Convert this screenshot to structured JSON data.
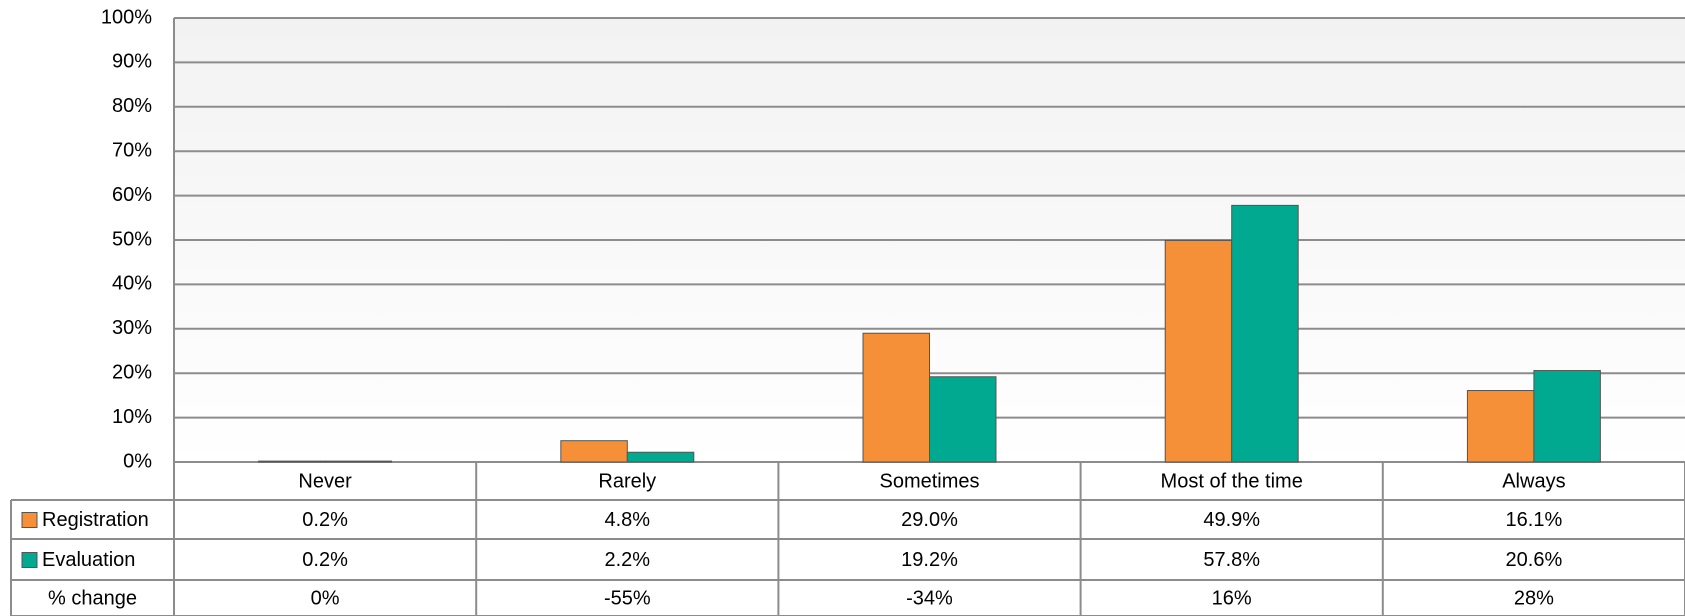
{
  "chart_data": {
    "type": "bar",
    "categories": [
      "Never",
      "Rarely",
      "Sometimes",
      "Most of the time",
      "Always"
    ],
    "series": [
      {
        "name": "Registration",
        "color": "#f59038",
        "values": [
          0.2,
          4.8,
          29.0,
          49.9,
          16.1
        ],
        "value_labels": [
          "0.2%",
          "4.8%",
          "29.0%",
          "49.9%",
          "16.1%"
        ]
      },
      {
        "name": "Evaluation",
        "color": "#00a98f",
        "values": [
          0.2,
          2.2,
          19.2,
          57.8,
          20.6
        ],
        "value_labels": [
          "0.2%",
          "2.2%",
          "19.2%",
          "57.8%",
          "20.6%"
        ]
      }
    ],
    "pct_change": {
      "name": "% change",
      "values": [
        0,
        -55,
        -34,
        16,
        28
      ],
      "value_labels": [
        "0%",
        "-55%",
        "-34%",
        "16%",
        "28%"
      ]
    },
    "ylim": [
      0,
      100
    ],
    "yticks": [
      {
        "value": 0,
        "label": "0%"
      },
      {
        "value": 10,
        "label": "10%"
      },
      {
        "value": 20,
        "label": "20%"
      },
      {
        "value": 30,
        "label": "30%"
      },
      {
        "value": 40,
        "label": "40%"
      },
      {
        "value": 50,
        "label": "50%"
      },
      {
        "value": 60,
        "label": "60%"
      },
      {
        "value": 70,
        "label": "70%"
      },
      {
        "value": 80,
        "label": "80%"
      },
      {
        "value": 90,
        "label": "90%"
      },
      {
        "value": 100,
        "label": "100%"
      }
    ],
    "grid": true
  }
}
